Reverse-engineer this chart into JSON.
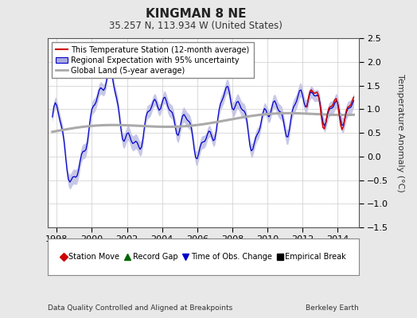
{
  "title": "KINGMAN 8 NE",
  "subtitle": "35.257 N, 113.934 W (United States)",
  "ylabel": "Temperature Anomaly (°C)",
  "xlabel_left": "Data Quality Controlled and Aligned at Breakpoints",
  "xlabel_right": "Berkeley Earth",
  "ylim": [
    -1.5,
    2.5
  ],
  "xlim": [
    1997.5,
    2015.2
  ],
  "yticks": [
    -1.5,
    -1.0,
    -0.5,
    0.0,
    0.5,
    1.0,
    1.5,
    2.0,
    2.5
  ],
  "xticks": [
    1998,
    2000,
    2002,
    2004,
    2006,
    2008,
    2010,
    2012,
    2014
  ],
  "bg_color": "#e8e8e8",
  "plot_bg_color": "#ffffff",
  "blue_line_color": "#0000cc",
  "blue_fill_color": "#aaaadd",
  "red_line_color": "#cc0000",
  "gray_line_color": "#aaaaaa",
  "legend_labels": [
    "This Temperature Station (12-month average)",
    "Regional Expectation with 95% uncertainty",
    "Global Land (5-year average)"
  ],
  "bottom_legend": [
    {
      "label": "Station Move",
      "color": "#cc0000",
      "marker": "D"
    },
    {
      "label": "Record Gap",
      "color": "#006600",
      "marker": "^"
    },
    {
      "label": "Time of Obs. Change",
      "color": "#0000cc",
      "marker": "v"
    },
    {
      "label": "Empirical Break",
      "color": "#000000",
      "marker": "s"
    }
  ]
}
